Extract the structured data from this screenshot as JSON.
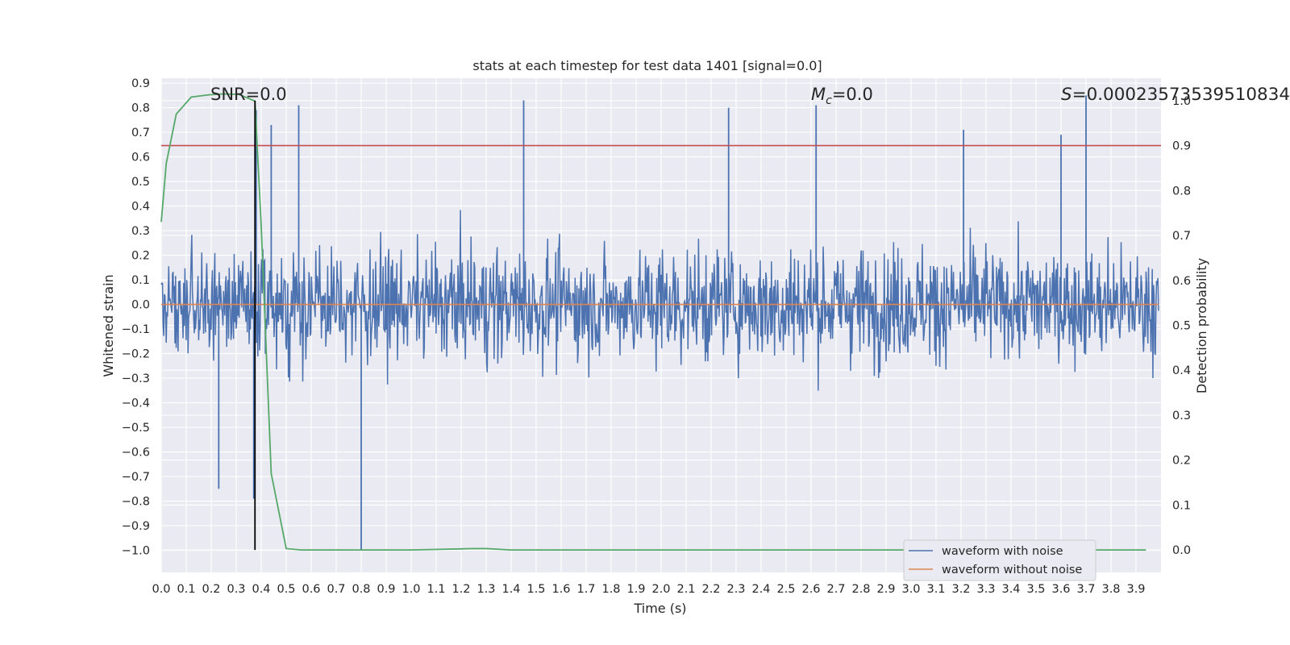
{
  "chart_data": {
    "type": "line",
    "title": "stats at each timestep for test data 1401 [signal=0.0]",
    "xlabel": "Time (s)",
    "ylabel": "Whitened strain",
    "y2label": "Detection probability",
    "xlim": [
      0.0,
      4.0
    ],
    "ylim": [
      -1.09,
      0.92
    ],
    "y2lim": [
      -0.05,
      1.05
    ],
    "xticks": [
      "0.0",
      "0.1",
      "0.2",
      "0.3",
      "0.4",
      "0.5",
      "0.6",
      "0.7",
      "0.8",
      "0.9",
      "1.0",
      "1.1",
      "1.2",
      "1.3",
      "1.4",
      "1.5",
      "1.6",
      "1.7",
      "1.8",
      "1.9",
      "2.0",
      "2.1",
      "2.2",
      "2.3",
      "2.4",
      "2.5",
      "2.6",
      "2.7",
      "2.8",
      "2.9",
      "3.0",
      "3.1",
      "3.2",
      "3.3",
      "3.4",
      "3.5",
      "3.6",
      "3.7",
      "3.8",
      "3.9"
    ],
    "yticks": [
      "0.9",
      "0.8",
      "0.7",
      "0.6",
      "0.5",
      "0.4",
      "0.3",
      "0.2",
      "0.1",
      "0.0",
      "−0.1",
      "−0.2",
      "−0.3",
      "−0.4",
      "−0.5",
      "−0.6",
      "−0.7",
      "−0.8",
      "−0.9",
      "−1.0"
    ],
    "y2ticks": [
      "1.0",
      "0.9",
      "0.8",
      "0.7",
      "0.6",
      "0.5",
      "0.4",
      "0.3",
      "0.2",
      "0.1",
      "0.0"
    ],
    "grid": true,
    "legend_position": "lower-right",
    "annotations": {
      "snr": "SNR=0.0",
      "mc_symbol": "M",
      "mc_subscript": "c",
      "mc_value": "=0.0",
      "s_symbol": "S",
      "s_value": "=0.00023573539510834"
    },
    "threshold": 0.9,
    "marker_time": 0.375,
    "series": [
      {
        "name": "waveform with noise",
        "color": "#4c72b0",
        "axis": "left",
        "amplitude_envelope": [
          -1.0,
          0.84
        ],
        "peaks": [
          [
            0.37,
            -0.79
          ],
          [
            0.38,
            0.79
          ],
          [
            0.44,
            0.73
          ],
          [
            0.55,
            0.81
          ],
          [
            0.8,
            -1.0
          ],
          [
            0.23,
            -0.75
          ],
          [
            1.45,
            0.83
          ],
          [
            2.27,
            0.8
          ],
          [
            2.62,
            0.81
          ],
          [
            3.7,
            0.85
          ],
          [
            3.21,
            0.71
          ],
          [
            3.6,
            0.69
          ]
        ]
      },
      {
        "name": "waveform without noise",
        "color": "#dd8452",
        "axis": "left",
        "x": [
          0.0,
          3.99
        ],
        "values": [
          0.0,
          0.0
        ]
      },
      {
        "color": "#55a868",
        "axis": "right",
        "x": [
          0.0,
          0.02,
          0.06,
          0.12,
          0.19,
          0.25,
          0.31,
          0.375,
          0.4,
          0.44,
          0.5,
          0.56,
          0.75,
          1.0,
          1.25,
          1.3,
          1.4,
          1.5,
          2.0,
          3.0,
          3.94
        ],
        "values": [
          0.73,
          0.86,
          0.97,
          1.008,
          1.013,
          1.015,
          1.014,
          0.999,
          0.72,
          0.17,
          0.003,
          0.0,
          0.0,
          0.0,
          0.003,
          0.003,
          0.0,
          0.0,
          0.0,
          0.0,
          0.0
        ]
      }
    ],
    "colors": {
      "background": "#eaeaf2",
      "grid": "#ffffff",
      "threshold": "#c44e52",
      "marker": "#000000",
      "legend_bg": "#eaeaf2",
      "legend_border": "#cccccc"
    }
  }
}
